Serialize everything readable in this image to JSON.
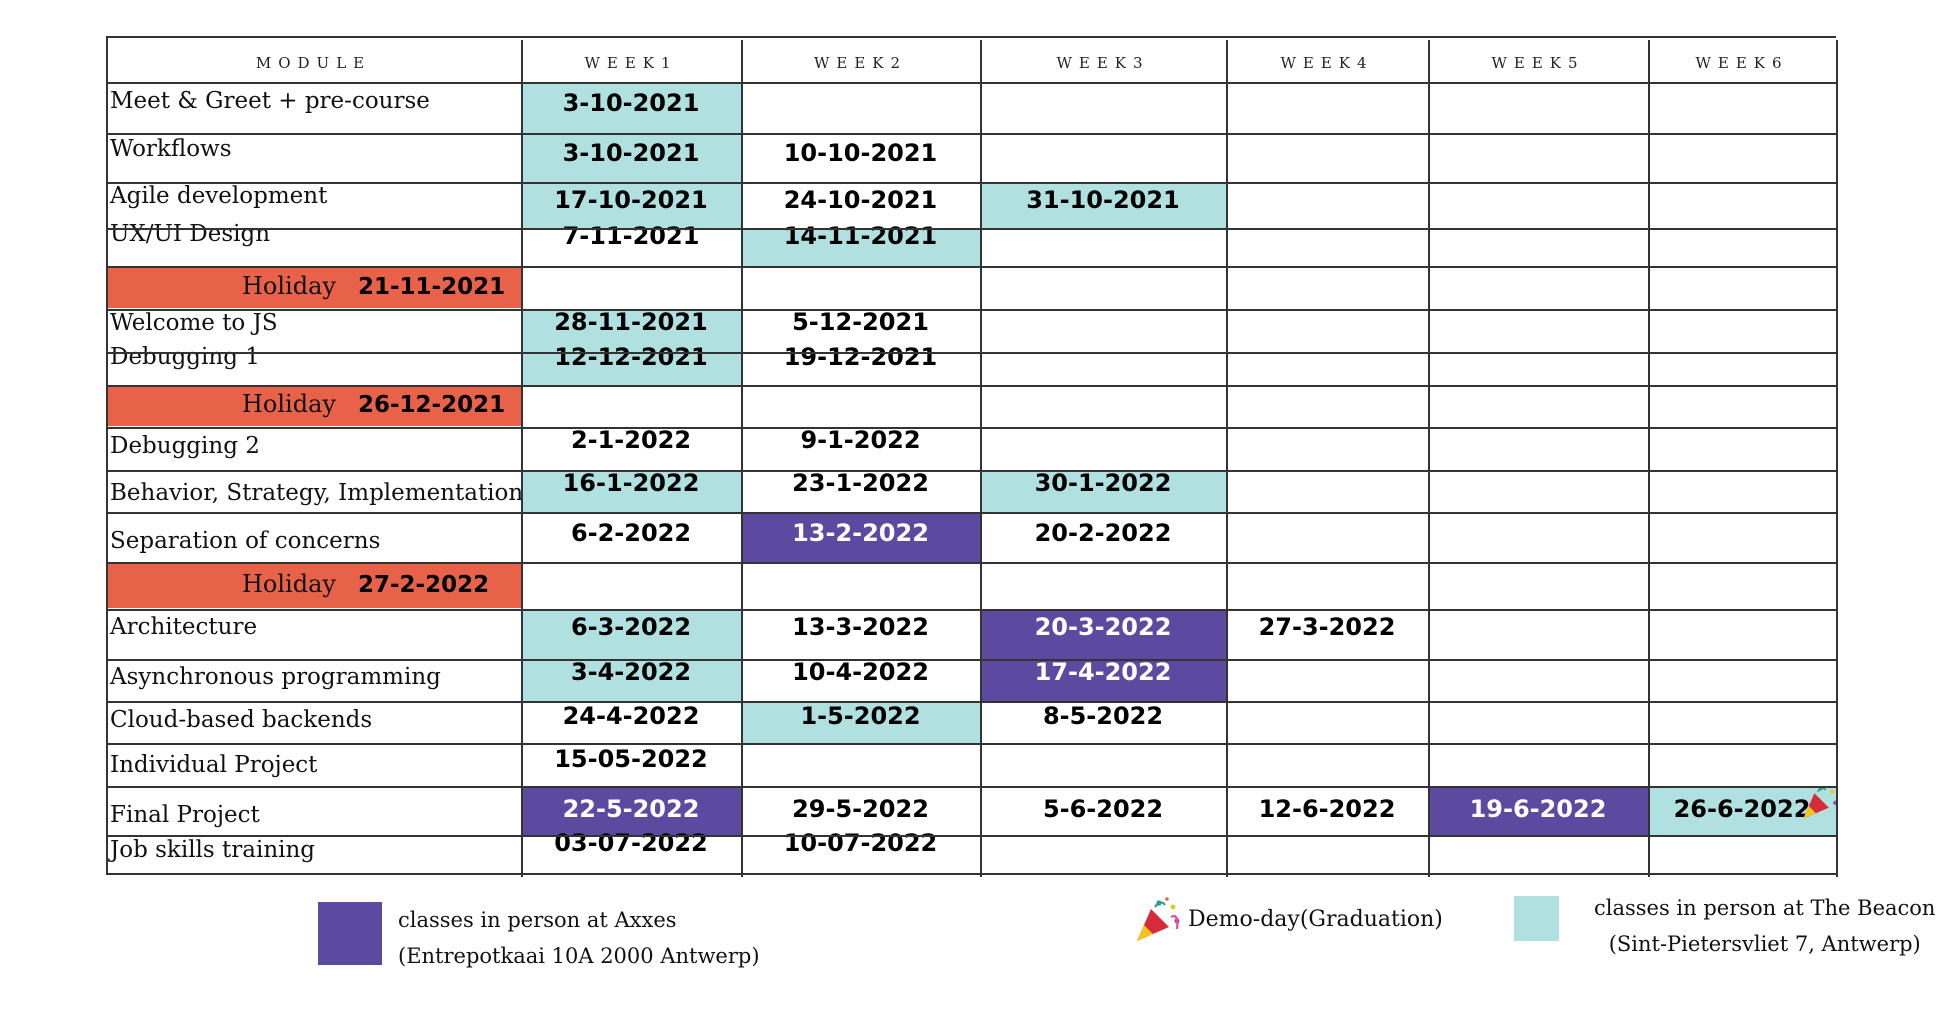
{
  "colors": {
    "beacon": "#b1e0e0",
    "axxes": "#5c4aa0",
    "holiday": "#e8624a",
    "grid": "#333333"
  },
  "header": {
    "module": "MODULE",
    "weeks": [
      "WEEK1",
      "WEEK2",
      "WEEK3",
      "WEEK4",
      "WEEK5",
      "WEEK6"
    ]
  },
  "rows": [
    {
      "module": "Meet & Greet + pre-course",
      "cells": [
        {
          "text": "3-10-2021",
          "fill": "beacon"
        },
        {
          "text": "",
          "fill": ""
        },
        {
          "text": "",
          "fill": ""
        },
        {
          "text": "",
          "fill": ""
        },
        {
          "text": "",
          "fill": ""
        },
        {
          "text": "",
          "fill": ""
        }
      ]
    },
    {
      "module": "Workflows",
      "cells": [
        {
          "text": "3-10-2021",
          "fill": "beacon"
        },
        {
          "text": "10-10-2021",
          "fill": ""
        },
        {
          "text": "",
          "fill": ""
        },
        {
          "text": "",
          "fill": ""
        },
        {
          "text": "",
          "fill": ""
        },
        {
          "text": "",
          "fill": ""
        }
      ]
    },
    {
      "module": "Agile development",
      "cells": [
        {
          "text": "17-10-2021",
          "fill": "beacon"
        },
        {
          "text": "24-10-2021",
          "fill": ""
        },
        {
          "text": "31-10-2021",
          "fill": "beacon"
        },
        {
          "text": "",
          "fill": ""
        },
        {
          "text": "",
          "fill": ""
        },
        {
          "text": "",
          "fill": ""
        }
      ]
    },
    {
      "module": "UX/UI Design",
      "cells": [
        {
          "text": "7-11-2021",
          "fill": ""
        },
        {
          "text": "14-11-2021",
          "fill": "beacon"
        },
        {
          "text": "",
          "fill": ""
        },
        {
          "text": "",
          "fill": ""
        },
        {
          "text": "",
          "fill": ""
        },
        {
          "text": "",
          "fill": ""
        }
      ]
    },
    {
      "holiday": true,
      "label": "Holiday",
      "date": "21-11-2021"
    },
    {
      "module": "Welcome to JS",
      "cells": [
        {
          "text": "28-11-2021",
          "fill": "beacon"
        },
        {
          "text": "5-12-2021",
          "fill": ""
        },
        {
          "text": "",
          "fill": ""
        },
        {
          "text": "",
          "fill": ""
        },
        {
          "text": "",
          "fill": ""
        },
        {
          "text": "",
          "fill": ""
        }
      ]
    },
    {
      "module": "Debugging 1",
      "cells": [
        {
          "text": "12-12-2021",
          "fill": "beacon"
        },
        {
          "text": "19-12-2021",
          "fill": ""
        },
        {
          "text": "",
          "fill": ""
        },
        {
          "text": "",
          "fill": ""
        },
        {
          "text": "",
          "fill": ""
        },
        {
          "text": "",
          "fill": ""
        }
      ]
    },
    {
      "holiday": true,
      "label": "Holiday",
      "date": "26-12-2021"
    },
    {
      "module": "Debugging 2",
      "cells": [
        {
          "text": "2-1-2022",
          "fill": ""
        },
        {
          "text": "9-1-2022",
          "fill": ""
        },
        {
          "text": "",
          "fill": ""
        },
        {
          "text": "",
          "fill": ""
        },
        {
          "text": "",
          "fill": ""
        },
        {
          "text": "",
          "fill": ""
        }
      ]
    },
    {
      "module": "Behavior, Strategy, Implementation",
      "cells": [
        {
          "text": "16-1-2022",
          "fill": "beacon"
        },
        {
          "text": "23-1-2022",
          "fill": ""
        },
        {
          "text": "30-1-2022",
          "fill": "beacon"
        },
        {
          "text": "",
          "fill": ""
        },
        {
          "text": "",
          "fill": ""
        },
        {
          "text": "",
          "fill": ""
        }
      ]
    },
    {
      "module": "Separation of concerns",
      "cells": [
        {
          "text": "6-2-2022",
          "fill": ""
        },
        {
          "text": "13-2-2022",
          "fill": "axxes"
        },
        {
          "text": "20-2-2022",
          "fill": ""
        },
        {
          "text": "",
          "fill": ""
        },
        {
          "text": "",
          "fill": ""
        },
        {
          "text": "",
          "fill": ""
        }
      ]
    },
    {
      "holiday": true,
      "label": "Holiday",
      "date": "27-2-2022"
    },
    {
      "module": "Architecture",
      "cells": [
        {
          "text": "6-3-2022",
          "fill": "beacon"
        },
        {
          "text": "13-3-2022",
          "fill": ""
        },
        {
          "text": "20-3-2022",
          "fill": "axxes"
        },
        {
          "text": "27-3-2022",
          "fill": ""
        },
        {
          "text": "",
          "fill": ""
        },
        {
          "text": "",
          "fill": ""
        }
      ]
    },
    {
      "module": "Asynchronous programming",
      "cells": [
        {
          "text": "3-4-2022",
          "fill": "beacon"
        },
        {
          "text": "10-4-2022",
          "fill": ""
        },
        {
          "text": "17-4-2022",
          "fill": "axxes"
        },
        {
          "text": "",
          "fill": ""
        },
        {
          "text": "",
          "fill": ""
        },
        {
          "text": "",
          "fill": ""
        }
      ]
    },
    {
      "module": "Cloud-based backends",
      "cells": [
        {
          "text": "24-4-2022",
          "fill": ""
        },
        {
          "text": "1-5-2022",
          "fill": "beacon"
        },
        {
          "text": "8-5-2022",
          "fill": ""
        },
        {
          "text": "",
          "fill": ""
        },
        {
          "text": "",
          "fill": ""
        },
        {
          "text": "",
          "fill": ""
        }
      ]
    },
    {
      "module": "Individual Project",
      "cells": [
        {
          "text": "15-05-2022",
          "fill": ""
        },
        {
          "text": "",
          "fill": ""
        },
        {
          "text": "",
          "fill": ""
        },
        {
          "text": "",
          "fill": ""
        },
        {
          "text": "",
          "fill": ""
        },
        {
          "text": "",
          "fill": ""
        }
      ]
    },
    {
      "module": "Final Project",
      "cells": [
        {
          "text": "22-5-2022",
          "fill": "axxes"
        },
        {
          "text": "29-5-2022",
          "fill": ""
        },
        {
          "text": "5-6-2022",
          "fill": ""
        },
        {
          "text": "12-6-2022",
          "fill": ""
        },
        {
          "text": "19-6-2022",
          "fill": "axxes"
        },
        {
          "text": "26-6-2022",
          "fill": "beacon",
          "icon": "party-popper-icon"
        }
      ]
    },
    {
      "module": "Job skills training",
      "cells": [
        {
          "text": "03-07-2022",
          "fill": ""
        },
        {
          "text": "10-07-2022",
          "fill": ""
        },
        {
          "text": "",
          "fill": ""
        },
        {
          "text": "",
          "fill": ""
        },
        {
          "text": "",
          "fill": ""
        },
        {
          "text": "",
          "fill": ""
        }
      ]
    }
  ],
  "legend": {
    "axxes_line1": "classes in person at Axxes",
    "axxes_line2": "(Entrepotkaai 10A 2000 Antwerp)",
    "demo": "Demo-day(Graduation)",
    "demo_icon": "party-popper-icon",
    "beacon_line1": "classes in person at The Beacon",
    "beacon_line2": "(Sint-Pietersvliet 7, Antwerp)"
  }
}
